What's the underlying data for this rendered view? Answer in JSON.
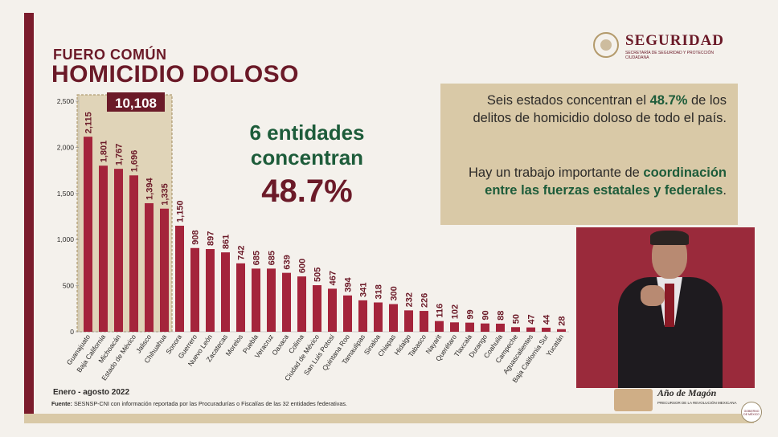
{
  "header": {
    "subtitle": "FUERO COMÚN",
    "title": "HOMICIDIO DOLOSO"
  },
  "logo": {
    "name": "SEGURIDAD",
    "subtext": "SECRETARÍA DE SEGURIDAD Y PROTECCIÓN CIUDADANA"
  },
  "callout": {
    "line1": "6 entidades",
    "line2": "concentran",
    "percent": "48.7%"
  },
  "right_box": {
    "p1_pre": "Seis estados concentran el ",
    "p1_bold": "48.7%",
    "p1_post": " de los delitos de homicidio doloso de todo el país.",
    "p2_pre": "Hay un trabajo importante de ",
    "p2_bold": "coordinación entre las fuerzas estatales y federales",
    "p2_post": "."
  },
  "footer": {
    "period": "Enero - agosto 2022",
    "source_label": "Fuente:",
    "source_text": "SESNSP-CNI con información reportada por las Procuradurías o Fiscalías de las 32 entidades federativas."
  },
  "badge": {
    "title": "Año de Magón",
    "subtitle": "PRECURSOR DE LA REVOLUCIÓN MEXICANA",
    "corner": "GOBIERNO DE MÉXICO"
  },
  "colors": {
    "bar": "#a4243b",
    "bar_highlight": "#a4243b",
    "highlight_box": "#d9c9a7",
    "label_dark": "#6b1a28",
    "accent_green": "#1d5c3a",
    "brand_maroon": "#6b1a28"
  },
  "chart_data": {
    "type": "bar",
    "title": "",
    "xlabel": "",
    "ylabel": "",
    "ylim": [
      0,
      2500
    ],
    "yticks": [
      0,
      500,
      1000,
      1500,
      2000,
      2500
    ],
    "ytick_labels": [
      "0",
      "500",
      "1,000",
      "1,500",
      "2,000",
      "2,500"
    ],
    "highlight_count": 6,
    "highlight_total_label": "10,108",
    "categories": [
      "Guanajuato",
      "Baja California",
      "Michoacán",
      "Estado de México",
      "Jalisco",
      "Chihuahua",
      "Sonora",
      "Guerrero",
      "Nuevo León",
      "Zacatecas",
      "Morelos",
      "Puebla",
      "Veracruz",
      "Oaxaca",
      "Colima",
      "Ciudad de México",
      "San Luis Potosí",
      "Quintana Roo",
      "Tamaulipas",
      "Sinaloa",
      "Chiapas",
      "Hidalgo",
      "Tabasco",
      "Nayarit",
      "Querétaro",
      "Tlaxcala",
      "Durango",
      "Coahuila",
      "Campeche",
      "Aguascalientes",
      "Baja California Sur",
      "Yucatán"
    ],
    "values": [
      2115,
      1801,
      1767,
      1696,
      1394,
      1335,
      1150,
      908,
      897,
      861,
      742,
      685,
      685,
      639,
      600,
      505,
      467,
      394,
      341,
      318,
      300,
      232,
      226,
      116,
      102,
      99,
      90,
      88,
      50,
      47,
      44,
      28
    ],
    "value_labels": [
      "2,115",
      "1,801",
      "1,767",
      "1,696",
      "1,394",
      "1,335",
      "1,150",
      "908",
      "897",
      "861",
      "742",
      "685",
      "685",
      "639",
      "600",
      "505",
      "467",
      "394",
      "341",
      "318",
      "300",
      "232",
      "226",
      "116",
      "102",
      "99",
      "90",
      "88",
      "50",
      "47",
      "44",
      "28"
    ]
  }
}
